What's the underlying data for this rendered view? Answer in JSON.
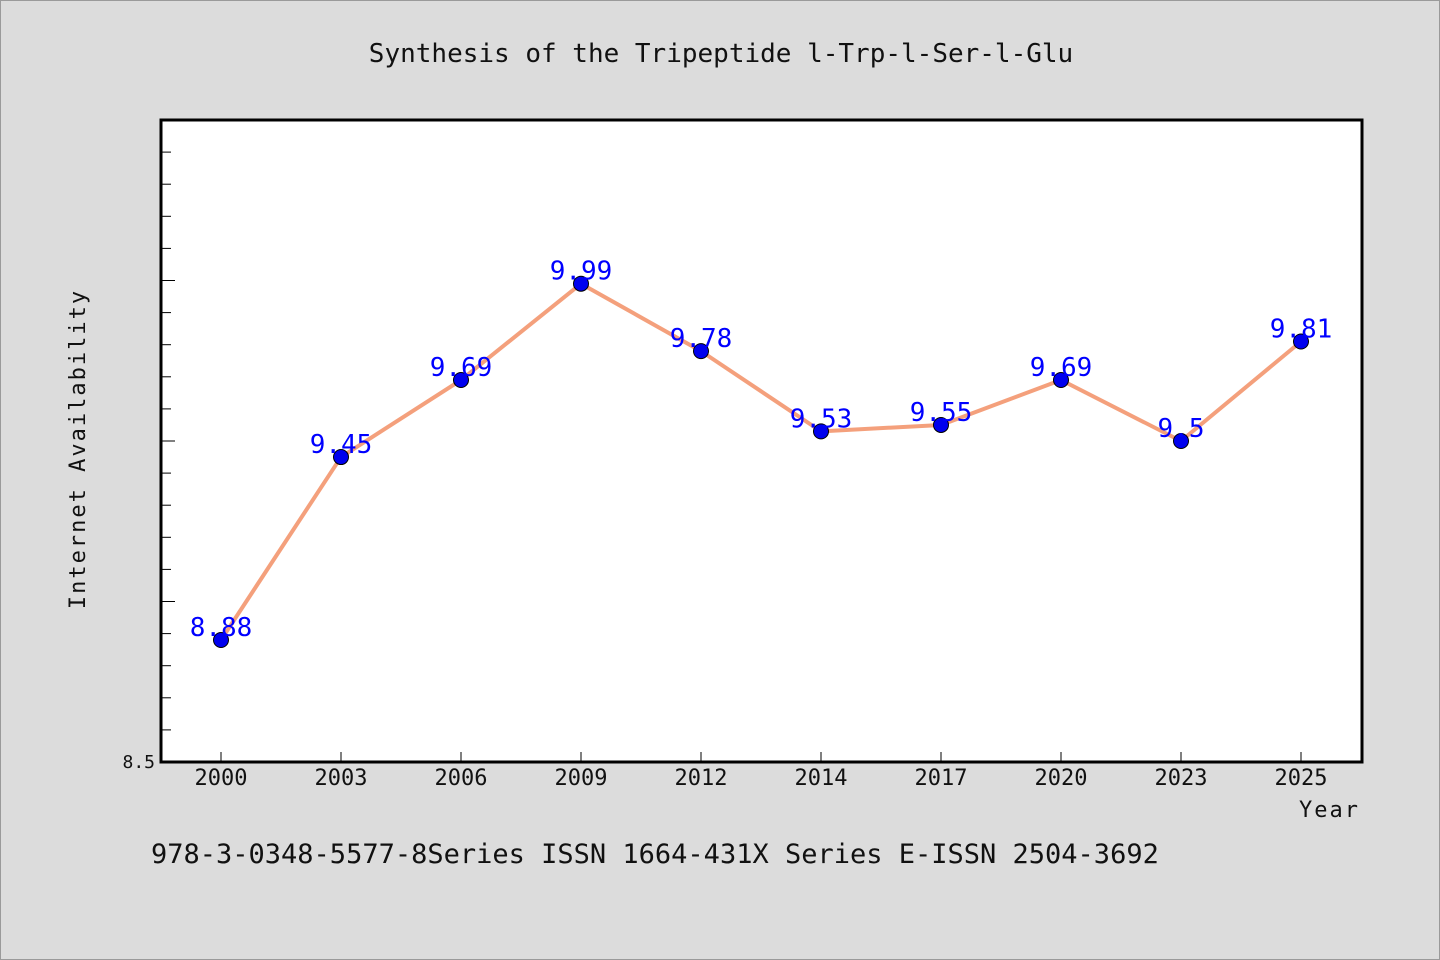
{
  "colors": {
    "line": "#f4a07c",
    "marker": "#0000ee",
    "label": "#0000ff",
    "plot_background": "#ffffff",
    "page_background": "#dcdcdc"
  },
  "footer": "978-3-0348-5577-8Series ISSN 1664-431X Series E-ISSN 2504-3692",
  "chart_data": {
    "type": "line",
    "title": "Synthesis of the Tripeptide l-Trp-l-Ser-l-Glu",
    "xlabel": "Year",
    "ylabel": "Internet Availability",
    "categories": [
      "2000",
      "2003",
      "2006",
      "2009",
      "2012",
      "2014",
      "2017",
      "2020",
      "2023",
      "2025"
    ],
    "series": [
      {
        "values": [
          8.88,
          9.45,
          9.69,
          9.99,
          9.78,
          9.53,
          9.55,
          9.69,
          9.5,
          9.81
        ],
        "data_labels": [
          "8.88",
          "9.45",
          "9.69",
          "9.99",
          "9.78",
          "9.53",
          "9.55",
          "9.69",
          "9.5",
          "9.81"
        ]
      }
    ],
    "ylim": [
      8.5,
      10.5
    ],
    "ytick_labels": [
      "8.5"
    ],
    "grid": false,
    "legend": "none"
  }
}
